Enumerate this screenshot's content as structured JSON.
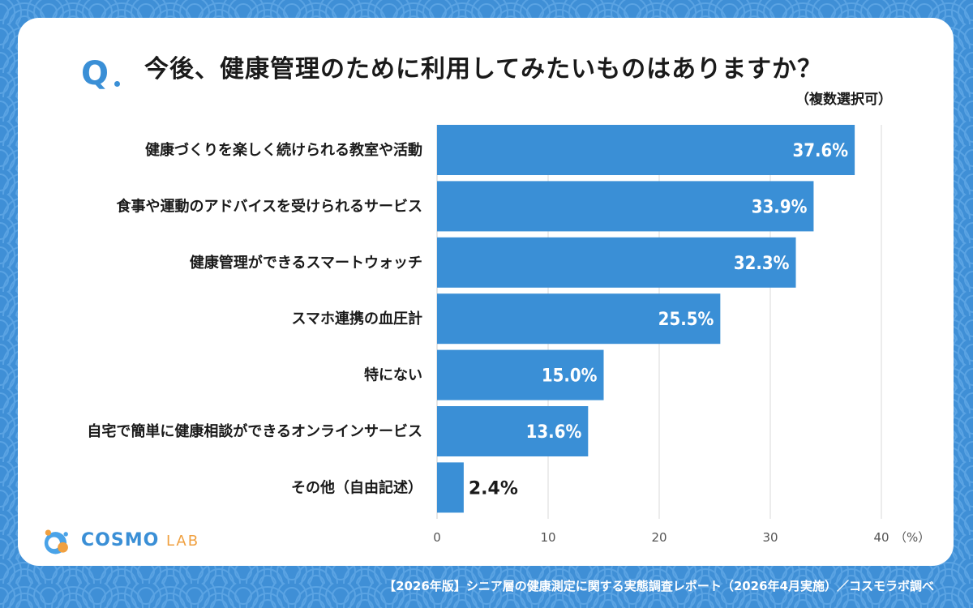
{
  "header": {
    "q_label": "Q",
    "question": "今後、健康管理のために利用してみたいものはありますか？",
    "note": "（複数選択可）"
  },
  "chart_data": {
    "type": "bar",
    "orientation": "horizontal",
    "categories": [
      "健康づくりを楽しく続けられる教室や活動",
      "食事や運動のアドバイスを受けられるサービス",
      "健康管理ができるスマートウォッチ",
      "スマホ連携の血圧計",
      "特にない",
      "自宅で簡単に健康相談ができるオンラインサービス",
      "その他（自由記述）"
    ],
    "values": [
      37.6,
      33.9,
      32.3,
      25.5,
      15.0,
      13.6,
      2.4
    ],
    "value_labels": [
      "37.6%",
      "33.9%",
      "32.3%",
      "25.5%",
      "15.0%",
      "13.6%",
      "2.4%"
    ],
    "xlim": [
      0,
      40
    ],
    "xticks": [
      "0",
      "10",
      "20",
      "30",
      "40"
    ],
    "xunit": "（%）",
    "grid": true,
    "bar_color": "#3a8fd6"
  },
  "logo": {
    "text_main": "COSMO",
    "text_sub": "LAB"
  },
  "footer": "【2026年版】シニア層の健康測定に関する実態調査レポート（2026年4月実施）／コスモラボ調べ",
  "colors": {
    "background": "#3f8fd6",
    "accent": "#3a8fd6",
    "logo_orange": "#f0a040"
  }
}
